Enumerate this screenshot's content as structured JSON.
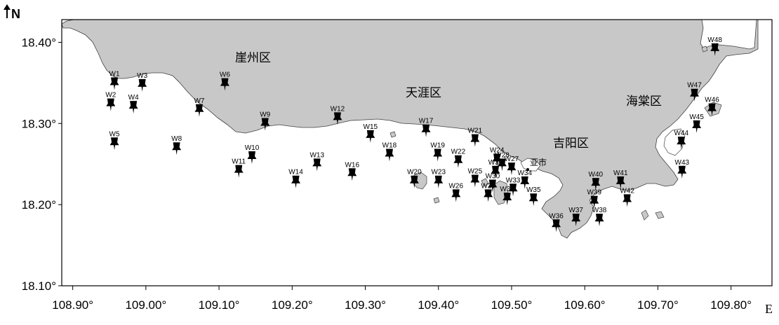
{
  "map": {
    "north_label": "N",
    "x_unit": "E",
    "x_ticks": [
      "108.90°",
      "109.00°",
      "109.10°",
      "109.20°",
      "109.30°",
      "109.40°",
      "109.50°",
      "109.60°",
      "109.70°",
      "109.80°"
    ],
    "y_ticks": [
      "18.40°",
      "18.30°",
      "18.20°",
      "18.10°"
    ],
    "districts": [
      "崖州区",
      "天涯区",
      "吉阳区",
      "海棠区"
    ],
    "city": "亚市",
    "land_color": "#c8c8c8",
    "marker_color": "#000000"
  },
  "stations": [
    {
      "label": "W1",
      "lon": 108.957,
      "lat": 18.349
    },
    {
      "label": "W2",
      "lon": 108.952,
      "lat": 18.323
    },
    {
      "label": "W3",
      "lon": 108.995,
      "lat": 18.347
    },
    {
      "label": "W4",
      "lon": 108.983,
      "lat": 18.32
    },
    {
      "label": "W5",
      "lon": 108.957,
      "lat": 18.275
    },
    {
      "label": "W6",
      "lon": 109.108,
      "lat": 18.348
    },
    {
      "label": "W7",
      "lon": 109.073,
      "lat": 18.316
    },
    {
      "label": "W8",
      "lon": 109.042,
      "lat": 18.269
    },
    {
      "label": "W9",
      "lon": 109.163,
      "lat": 18.299
    },
    {
      "label": "W10",
      "lon": 109.145,
      "lat": 18.258
    },
    {
      "label": "W11",
      "lon": 109.127,
      "lat": 18.241
    },
    {
      "label": "W12",
      "lon": 109.262,
      "lat": 18.306
    },
    {
      "label": "W13",
      "lon": 109.234,
      "lat": 18.249
    },
    {
      "label": "W14",
      "lon": 109.205,
      "lat": 18.228
    },
    {
      "label": "W15",
      "lon": 109.307,
      "lat": 18.284
    },
    {
      "label": "W16",
      "lon": 109.282,
      "lat": 18.237
    },
    {
      "label": "W17",
      "lon": 109.383,
      "lat": 18.291
    },
    {
      "label": "W18",
      "lon": 109.333,
      "lat": 18.261
    },
    {
      "label": "W19",
      "lon": 109.399,
      "lat": 18.261
    },
    {
      "label": "W20",
      "lon": 109.367,
      "lat": 18.228
    },
    {
      "label": "W21",
      "lon": 109.45,
      "lat": 18.279
    },
    {
      "label": "W22",
      "lon": 109.427,
      "lat": 18.253
    },
    {
      "label": "W23",
      "lon": 109.4,
      "lat": 18.228
    },
    {
      "label": "W24",
      "lon": 109.48,
      "lat": 18.255
    },
    {
      "label": "W25",
      "lon": 109.45,
      "lat": 18.229
    },
    {
      "label": "W26",
      "lon": 109.424,
      "lat": 18.211
    },
    {
      "label": "W27",
      "lon": 109.5,
      "lat": 18.244
    },
    {
      "label": "W28",
      "lon": 109.487,
      "lat": 18.249
    },
    {
      "label": "W29",
      "lon": 109.468,
      "lat": 18.211
    },
    {
      "label": "W30",
      "lon": 109.474,
      "lat": 18.223
    },
    {
      "label": "W31",
      "lon": 109.478,
      "lat": 18.24
    },
    {
      "label": "W32",
      "lon": 109.494,
      "lat": 18.207
    },
    {
      "label": "W33",
      "lon": 109.502,
      "lat": 18.218
    },
    {
      "label": "W34",
      "lon": 109.518,
      "lat": 18.227
    },
    {
      "label": "W35",
      "lon": 109.53,
      "lat": 18.206
    },
    {
      "label": "W36",
      "lon": 109.561,
      "lat": 18.174
    },
    {
      "label": "W37",
      "lon": 109.588,
      "lat": 18.181
    },
    {
      "label": "W38",
      "lon": 109.62,
      "lat": 18.181
    },
    {
      "label": "W39",
      "lon": 109.613,
      "lat": 18.203
    },
    {
      "label": "W40",
      "lon": 109.615,
      "lat": 18.225
    },
    {
      "label": "W41",
      "lon": 109.649,
      "lat": 18.227
    },
    {
      "label": "W42",
      "lon": 109.658,
      "lat": 18.205
    },
    {
      "label": "W43",
      "lon": 109.733,
      "lat": 18.24
    },
    {
      "label": "W44",
      "lon": 109.732,
      "lat": 18.276
    },
    {
      "label": "W45",
      "lon": 109.753,
      "lat": 18.296
    },
    {
      "label": "W46",
      "lon": 109.774,
      "lat": 18.317
    },
    {
      "label": "W47",
      "lon": 109.75,
      "lat": 18.335
    },
    {
      "label": "W48",
      "lon": 109.778,
      "lat": 18.391
    }
  ]
}
